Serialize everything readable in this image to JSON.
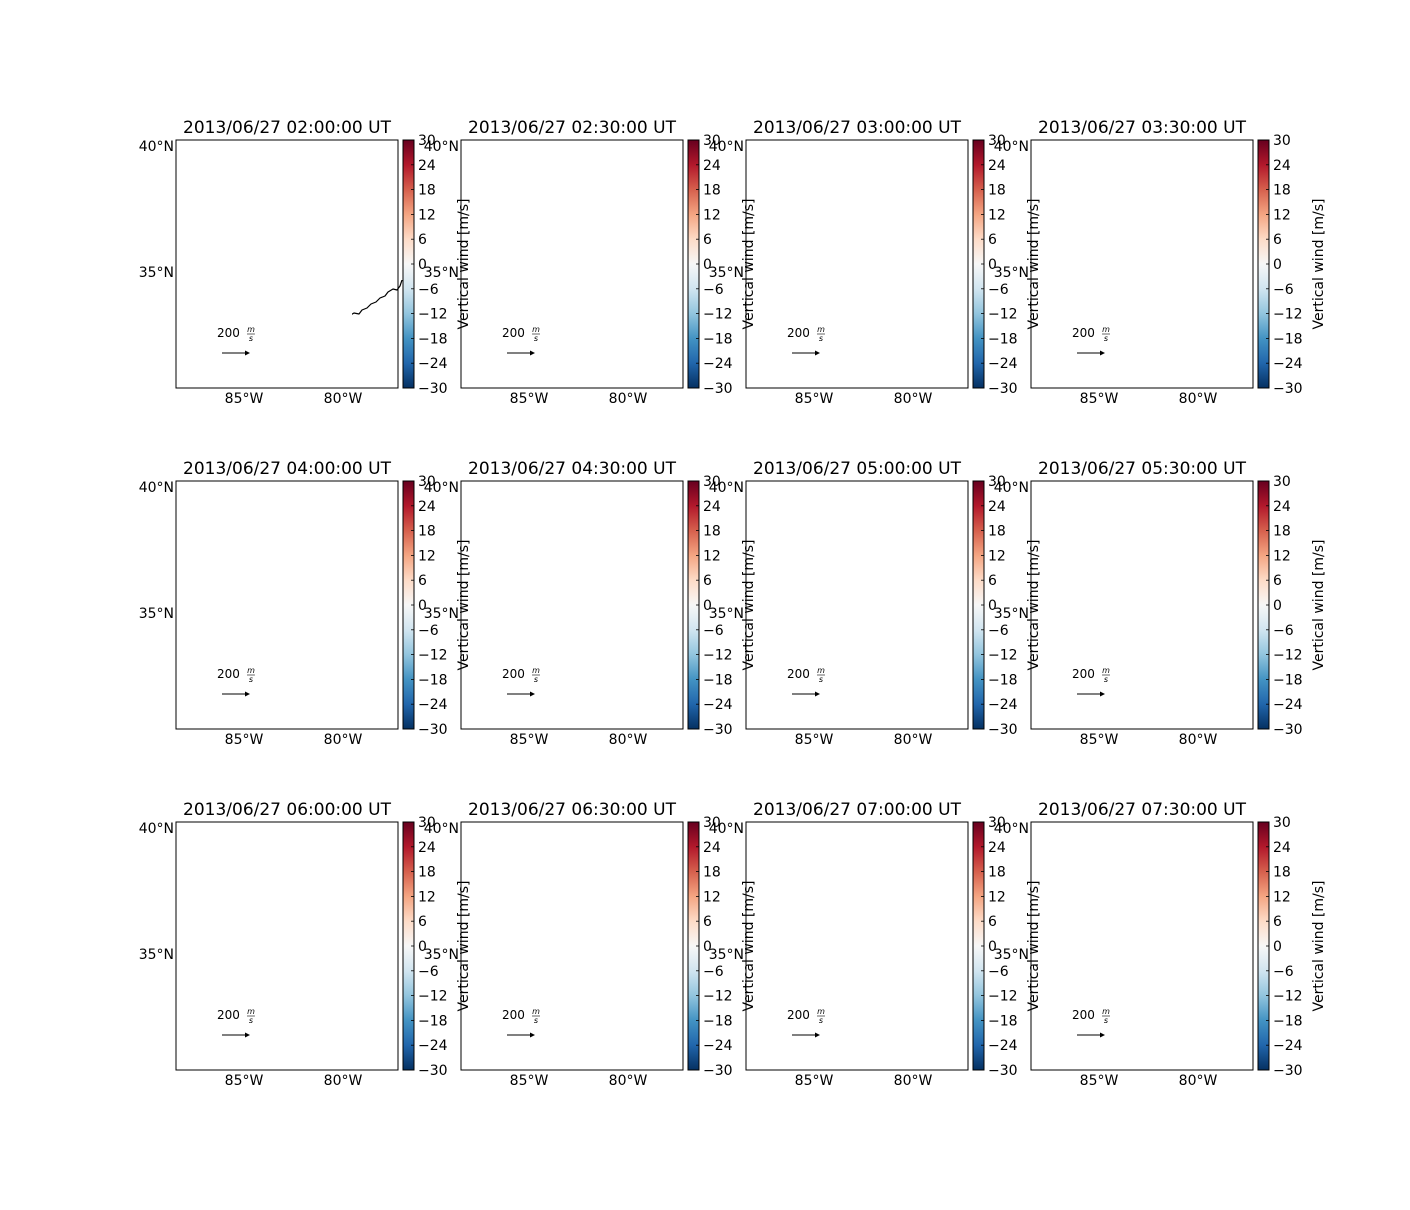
{
  "chart_data": {
    "type": "map",
    "panels": [
      {
        "title": "2013/06/27 02:00:00 UT"
      },
      {
        "title": "2013/06/27 02:30:00 UT"
      },
      {
        "title": "2013/06/27 03:00:00 UT"
      },
      {
        "title": "2013/06/27 03:30:00 UT"
      },
      {
        "title": "2013/06/27 04:00:00 UT"
      },
      {
        "title": "2013/06/27 04:30:00 UT"
      },
      {
        "title": "2013/06/27 05:00:00 UT"
      },
      {
        "title": "2013/06/27 05:30:00 UT"
      },
      {
        "title": "2013/06/27 06:00:00 UT"
      },
      {
        "title": "2013/06/27 06:30:00 UT"
      },
      {
        "title": "2013/06/27 07:00:00 UT"
      },
      {
        "title": "2013/06/27 07:30:00 UT"
      }
    ],
    "lat_ticks": [
      "40°N",
      "35°N"
    ],
    "lon_ticks": [
      "85°W",
      "80°W"
    ],
    "colorbar": {
      "label": "Vertical wind [m/s]",
      "min": -30,
      "max": 30,
      "ticks": [
        "30",
        "24",
        "18",
        "12",
        "6",
        "0",
        "−6",
        "−12",
        "−18",
        "−24",
        "−30"
      ],
      "colormap": "RdBu_r"
    },
    "quiver_key": {
      "value": "200",
      "unit_num": "m",
      "unit_den": "s"
    },
    "coastline_color": "#000000"
  }
}
